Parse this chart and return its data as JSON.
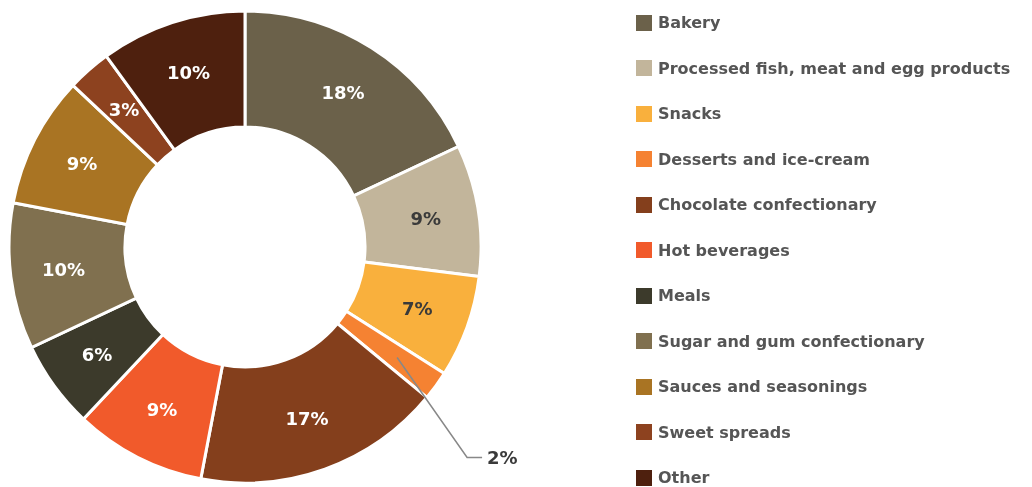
{
  "chart_data": {
    "type": "donut",
    "categories": [
      "Bakery",
      "Processed fish, meat and egg products",
      "Snacks",
      "Desserts and ice-cream",
      "Chocolate confectionary",
      "Hot beverages",
      "Meals",
      "Sugar and gum confectionary",
      "Sauces and seasonings",
      "Sweet spreads",
      "Other"
    ],
    "values": [
      18,
      9,
      7,
      2,
      17,
      9,
      6,
      10,
      9,
      3,
      10
    ],
    "value_labels": [
      "18%",
      "9%",
      "7%",
      "2%",
      "17%",
      "9%",
      "6%",
      "10%",
      "9%",
      "3%",
      "10%"
    ],
    "colors": [
      "#6b614a",
      "#c2b59b",
      "#f9b03d",
      "#f58232",
      "#843f1c",
      "#f15a2b",
      "#3c3a2b",
      "#80704f",
      "#a97423",
      "#8d421f",
      "#4e200e"
    ],
    "legend": "right"
  }
}
